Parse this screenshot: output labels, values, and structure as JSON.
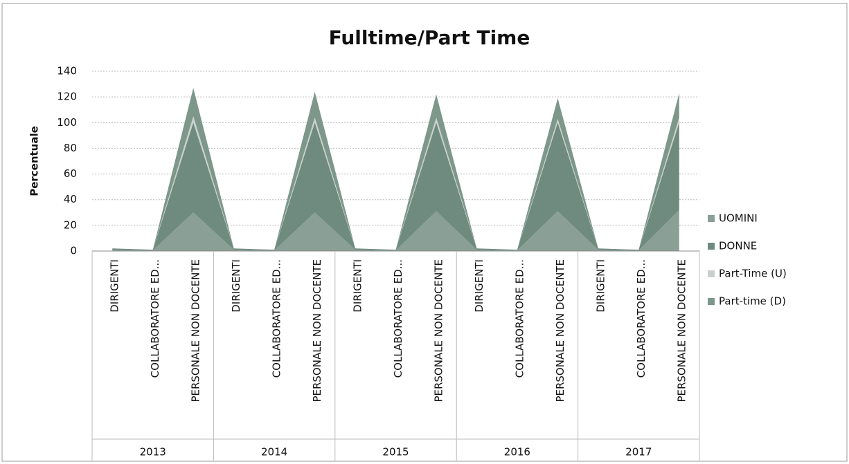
{
  "chart_data": {
    "type": "stacked_area",
    "title": "Fulltime/Part Time",
    "y_label": "Percentuale",
    "categories": [
      "DIRIGENTI",
      "COLLABORATORE ED...",
      "PERSONALE NON DOCENTE",
      "DIRIGENTI",
      "COLLABORATORE ED...",
      "PERSONALE NON DOCENTE",
      "DIRIGENTI",
      "COLLABORATORE ED...",
      "PERSONALE NON DOCENTE",
      "DIRIGENTI",
      "COLLABORATORE ED...",
      "PERSONALE NON DOCENTE",
      "DIRIGENTI",
      "COLLABORATORE ED...",
      "PERSONALE NON DOCENTE"
    ],
    "groups": [
      "2013",
      "2014",
      "2015",
      "2016",
      "2017"
    ],
    "series": [
      {
        "name": "UOMINI",
        "color": "#8a9f96",
        "values": [
          1,
          0.5,
          30,
          1,
          0.5,
          30,
          1,
          0.5,
          31,
          1,
          0.5,
          31,
          1,
          0.5,
          32
        ]
      },
      {
        "name": "DONNE",
        "color": "#6f8a7e",
        "values": [
          1,
          0.5,
          70,
          1,
          0.5,
          70,
          1,
          0.5,
          69,
          1,
          0.5,
          69,
          1,
          0.5,
          68
        ]
      },
      {
        "name": "Part-Time (U)",
        "color": "#c9d0cd",
        "values": [
          0,
          0,
          5,
          0,
          0,
          4,
          0,
          0,
          4,
          0,
          0,
          3,
          0,
          0,
          4
        ]
      },
      {
        "name": "Part-time (D)",
        "color": "#7d978b",
        "values": [
          0,
          0,
          22,
          0,
          0,
          20,
          0,
          0,
          18,
          0,
          0,
          16,
          0,
          0,
          19
        ]
      }
    ],
    "ylim": [
      0,
      140
    ],
    "yticks": [
      0,
      20,
      40,
      60,
      80,
      100,
      120,
      140
    ],
    "grid": true,
    "legend": "right"
  }
}
